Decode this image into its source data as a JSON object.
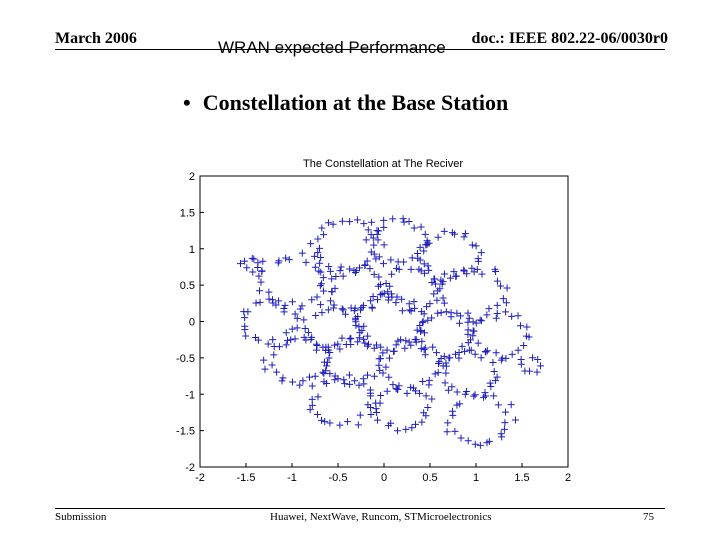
{
  "header": {
    "date": "March 2006",
    "doc_id": "doc.: IEEE 802.22-06/0030r0",
    "title": "WRAN expected Performance"
  },
  "bullet": {
    "symbol": "•",
    "text": "Constellation at the Base Station"
  },
  "footer": {
    "left": "Submission",
    "center": "Huawei, NextWave, Runcom, STMicroelectronics",
    "page": "75"
  },
  "chart_data": {
    "type": "scatter",
    "title": "The Constellation at The Reciver",
    "xlim": [
      -2,
      2
    ],
    "ylim": [
      -2,
      2
    ],
    "xticks": [
      "-2",
      "-1.5",
      "-1",
      "-0.5",
      "0",
      "0.5",
      "1",
      "1.5",
      "2"
    ],
    "yticks": [
      "2",
      "1.5",
      "1",
      "0.5",
      "0",
      "-0.5",
      "-1",
      "-1.5",
      "-2"
    ],
    "marker": "+",
    "color": "#1f1fbf",
    "grid": false,
    "loops": [
      {
        "cx": -0.4,
        "cy": 1.05,
        "r": 0.35,
        "n": 30
      },
      {
        "cx": 0.15,
        "cy": 1.1,
        "r": 0.3,
        "n": 26
      },
      {
        "cx": 0.7,
        "cy": 0.9,
        "r": 0.3,
        "n": 26
      },
      {
        "cx": -1.0,
        "cy": 0.55,
        "r": 0.35,
        "n": 30
      },
      {
        "cx": -0.3,
        "cy": 0.45,
        "r": 0.3,
        "n": 26
      },
      {
        "cx": 0.3,
        "cy": 0.45,
        "r": 0.28,
        "n": 24
      },
      {
        "cx": 0.95,
        "cy": 0.4,
        "r": 0.35,
        "n": 30
      },
      {
        "cx": -1.25,
        "cy": 0.0,
        "r": 0.28,
        "n": 22
      },
      {
        "cx": -0.55,
        "cy": -0.1,
        "r": 0.3,
        "n": 26
      },
      {
        "cx": 0.05,
        "cy": 0.0,
        "r": 0.35,
        "n": 32
      },
      {
        "cx": 0.65,
        "cy": -0.2,
        "r": 0.3,
        "n": 26
      },
      {
        "cx": 1.25,
        "cy": -0.2,
        "r": 0.3,
        "n": 24
      },
      {
        "cx": -0.95,
        "cy": -0.55,
        "r": 0.3,
        "n": 26
      },
      {
        "cx": -0.35,
        "cy": -0.55,
        "r": 0.3,
        "n": 26
      },
      {
        "cx": 0.3,
        "cy": -0.6,
        "r": 0.32,
        "n": 28
      },
      {
        "cx": 0.95,
        "cy": -0.7,
        "r": 0.3,
        "n": 24
      },
      {
        "cx": -0.45,
        "cy": -1.1,
        "r": 0.32,
        "n": 26
      },
      {
        "cx": 0.2,
        "cy": -1.2,
        "r": 0.28,
        "n": 24
      },
      {
        "cx": 1.05,
        "cy": -1.35,
        "r": 0.32,
        "n": 26
      },
      {
        "cx": -1.45,
        "cy": 0.8,
        "r": 0.1,
        "n": 8
      },
      {
        "cx": 1.6,
        "cy": -0.6,
        "r": 0.1,
        "n": 8
      }
    ]
  }
}
